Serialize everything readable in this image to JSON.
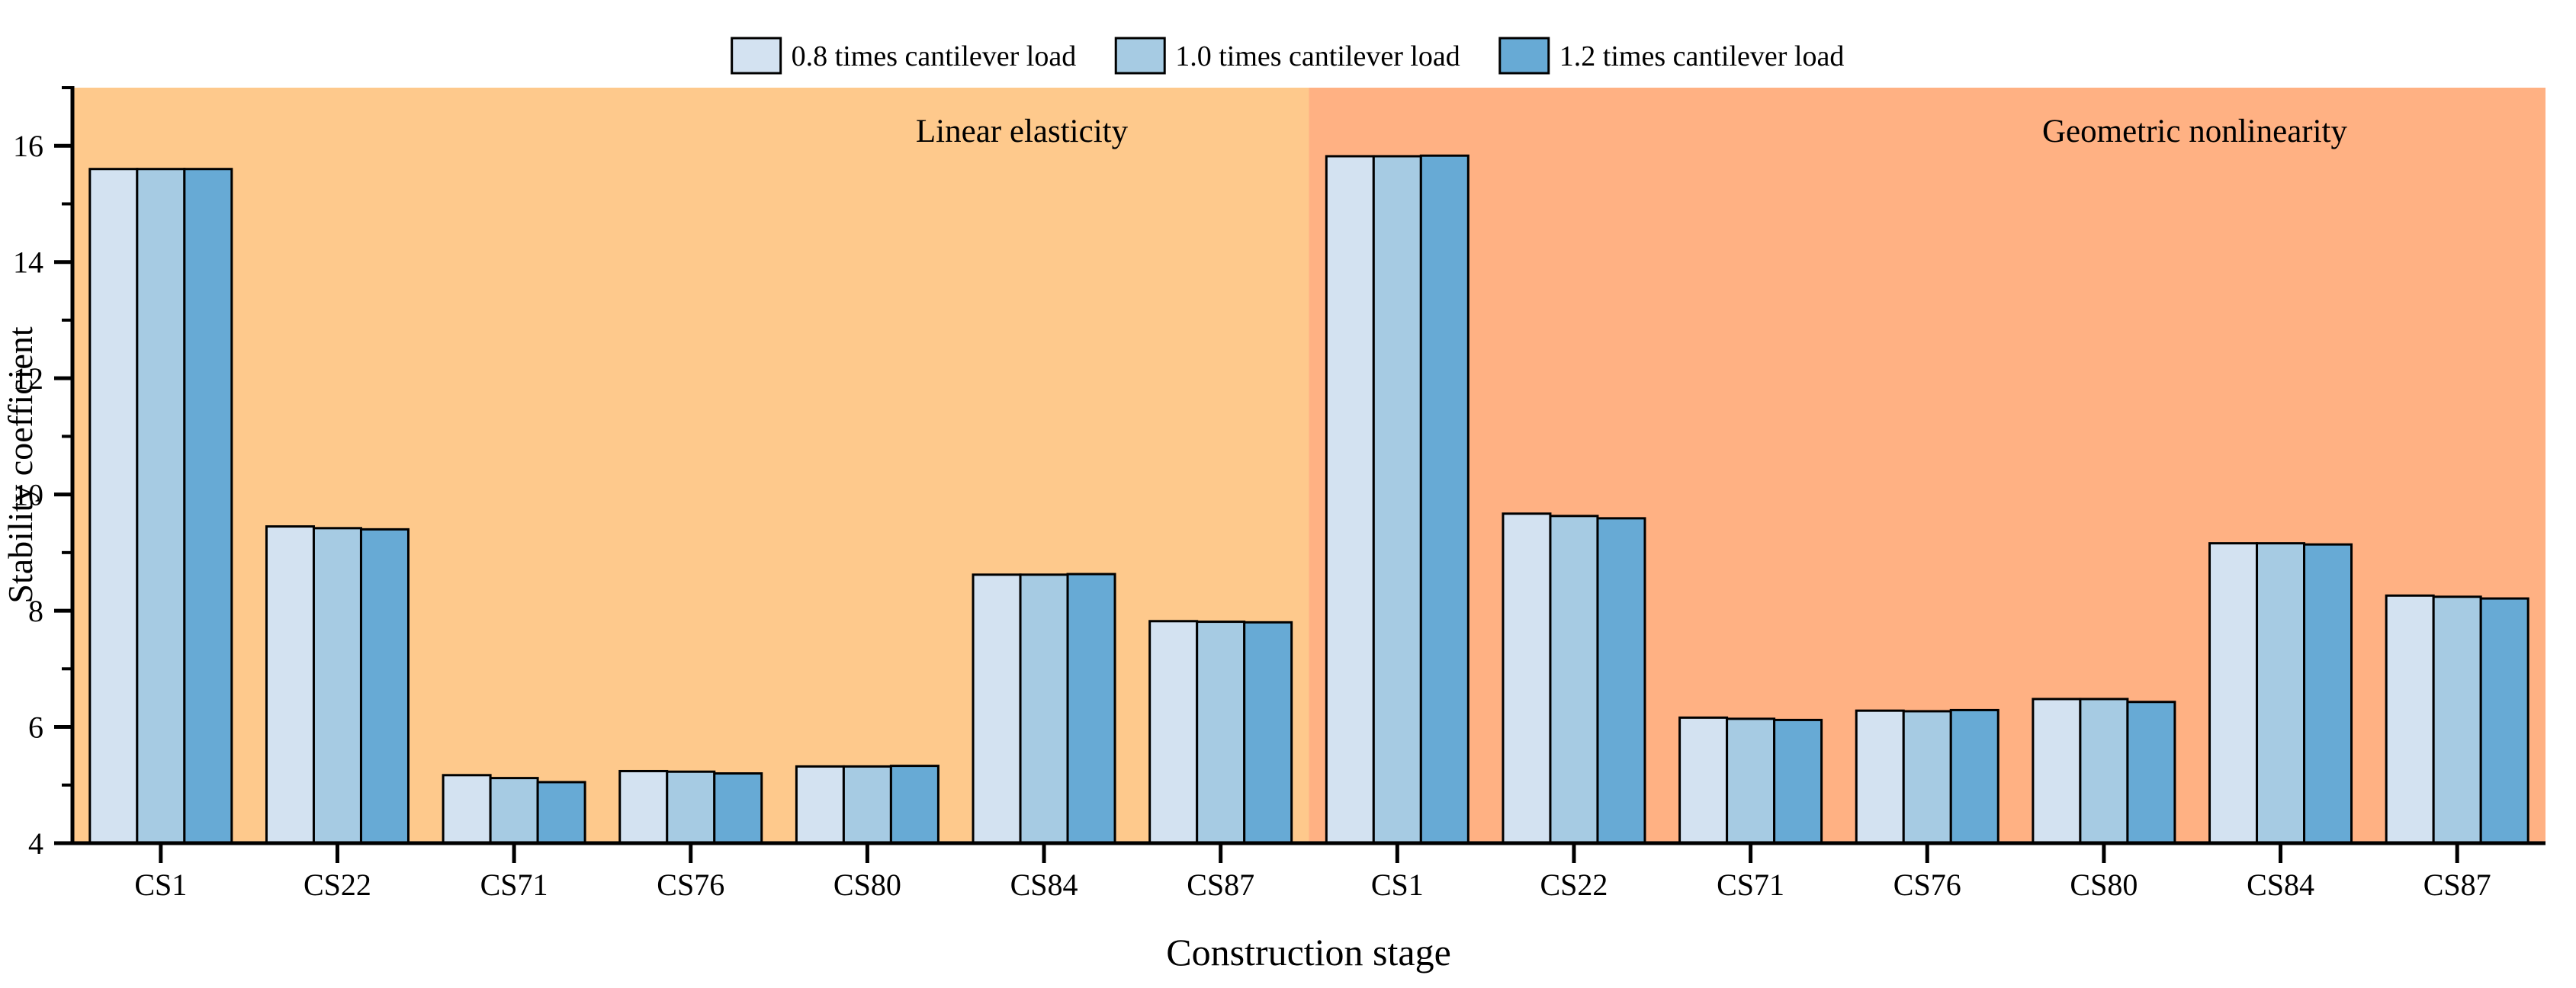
{
  "chart_data": {
    "type": "bar",
    "title": "",
    "xlabel": "Construction stage",
    "ylabel": "Stability coefficient",
    "ylim": [
      4,
      17
    ],
    "y_major_ticks": [
      4,
      6,
      8,
      10,
      12,
      14,
      16
    ],
    "y_minor_ticks": [
      5,
      7,
      9,
      11,
      13,
      15,
      17
    ],
    "grid": false,
    "legend_position": "top-center",
    "bar_border_color": "#000000",
    "categories": [
      "CS1",
      "CS22",
      "CS71",
      "CS76",
      "CS80",
      "CS84",
      "CS87",
      "CS1",
      "CS22",
      "CS71",
      "CS76",
      "CS80",
      "CS84",
      "CS87"
    ],
    "regions": [
      {
        "label": "Linear elasticity",
        "start_index": 0,
        "end_index": 7,
        "bg_color": "#FEC98C"
      },
      {
        "label": "Geometric nonlinearity",
        "start_index": 7,
        "end_index": 14,
        "bg_color": "#FFB183"
      }
    ],
    "series": [
      {
        "name": "0.8 times cantilever load",
        "color": "#D3E2F1",
        "values": [
          15.6,
          9.45,
          5.17,
          5.24,
          5.32,
          8.62,
          7.82,
          15.82,
          9.67,
          6.16,
          6.28,
          6.48,
          9.16,
          8.26
        ]
      },
      {
        "name": "1.0 times cantilever load",
        "color": "#A6CBE3",
        "values": [
          15.6,
          9.42,
          5.12,
          5.23,
          5.32,
          8.62,
          7.81,
          15.82,
          9.63,
          6.14,
          6.27,
          6.48,
          9.16,
          8.24
        ]
      },
      {
        "name": "1.2 times cantilever load",
        "color": "#67AAD5",
        "values": [
          15.6,
          9.4,
          5.05,
          5.2,
          5.33,
          8.63,
          7.8,
          15.83,
          9.59,
          6.12,
          6.29,
          6.43,
          9.14,
          8.21
        ]
      }
    ]
  }
}
